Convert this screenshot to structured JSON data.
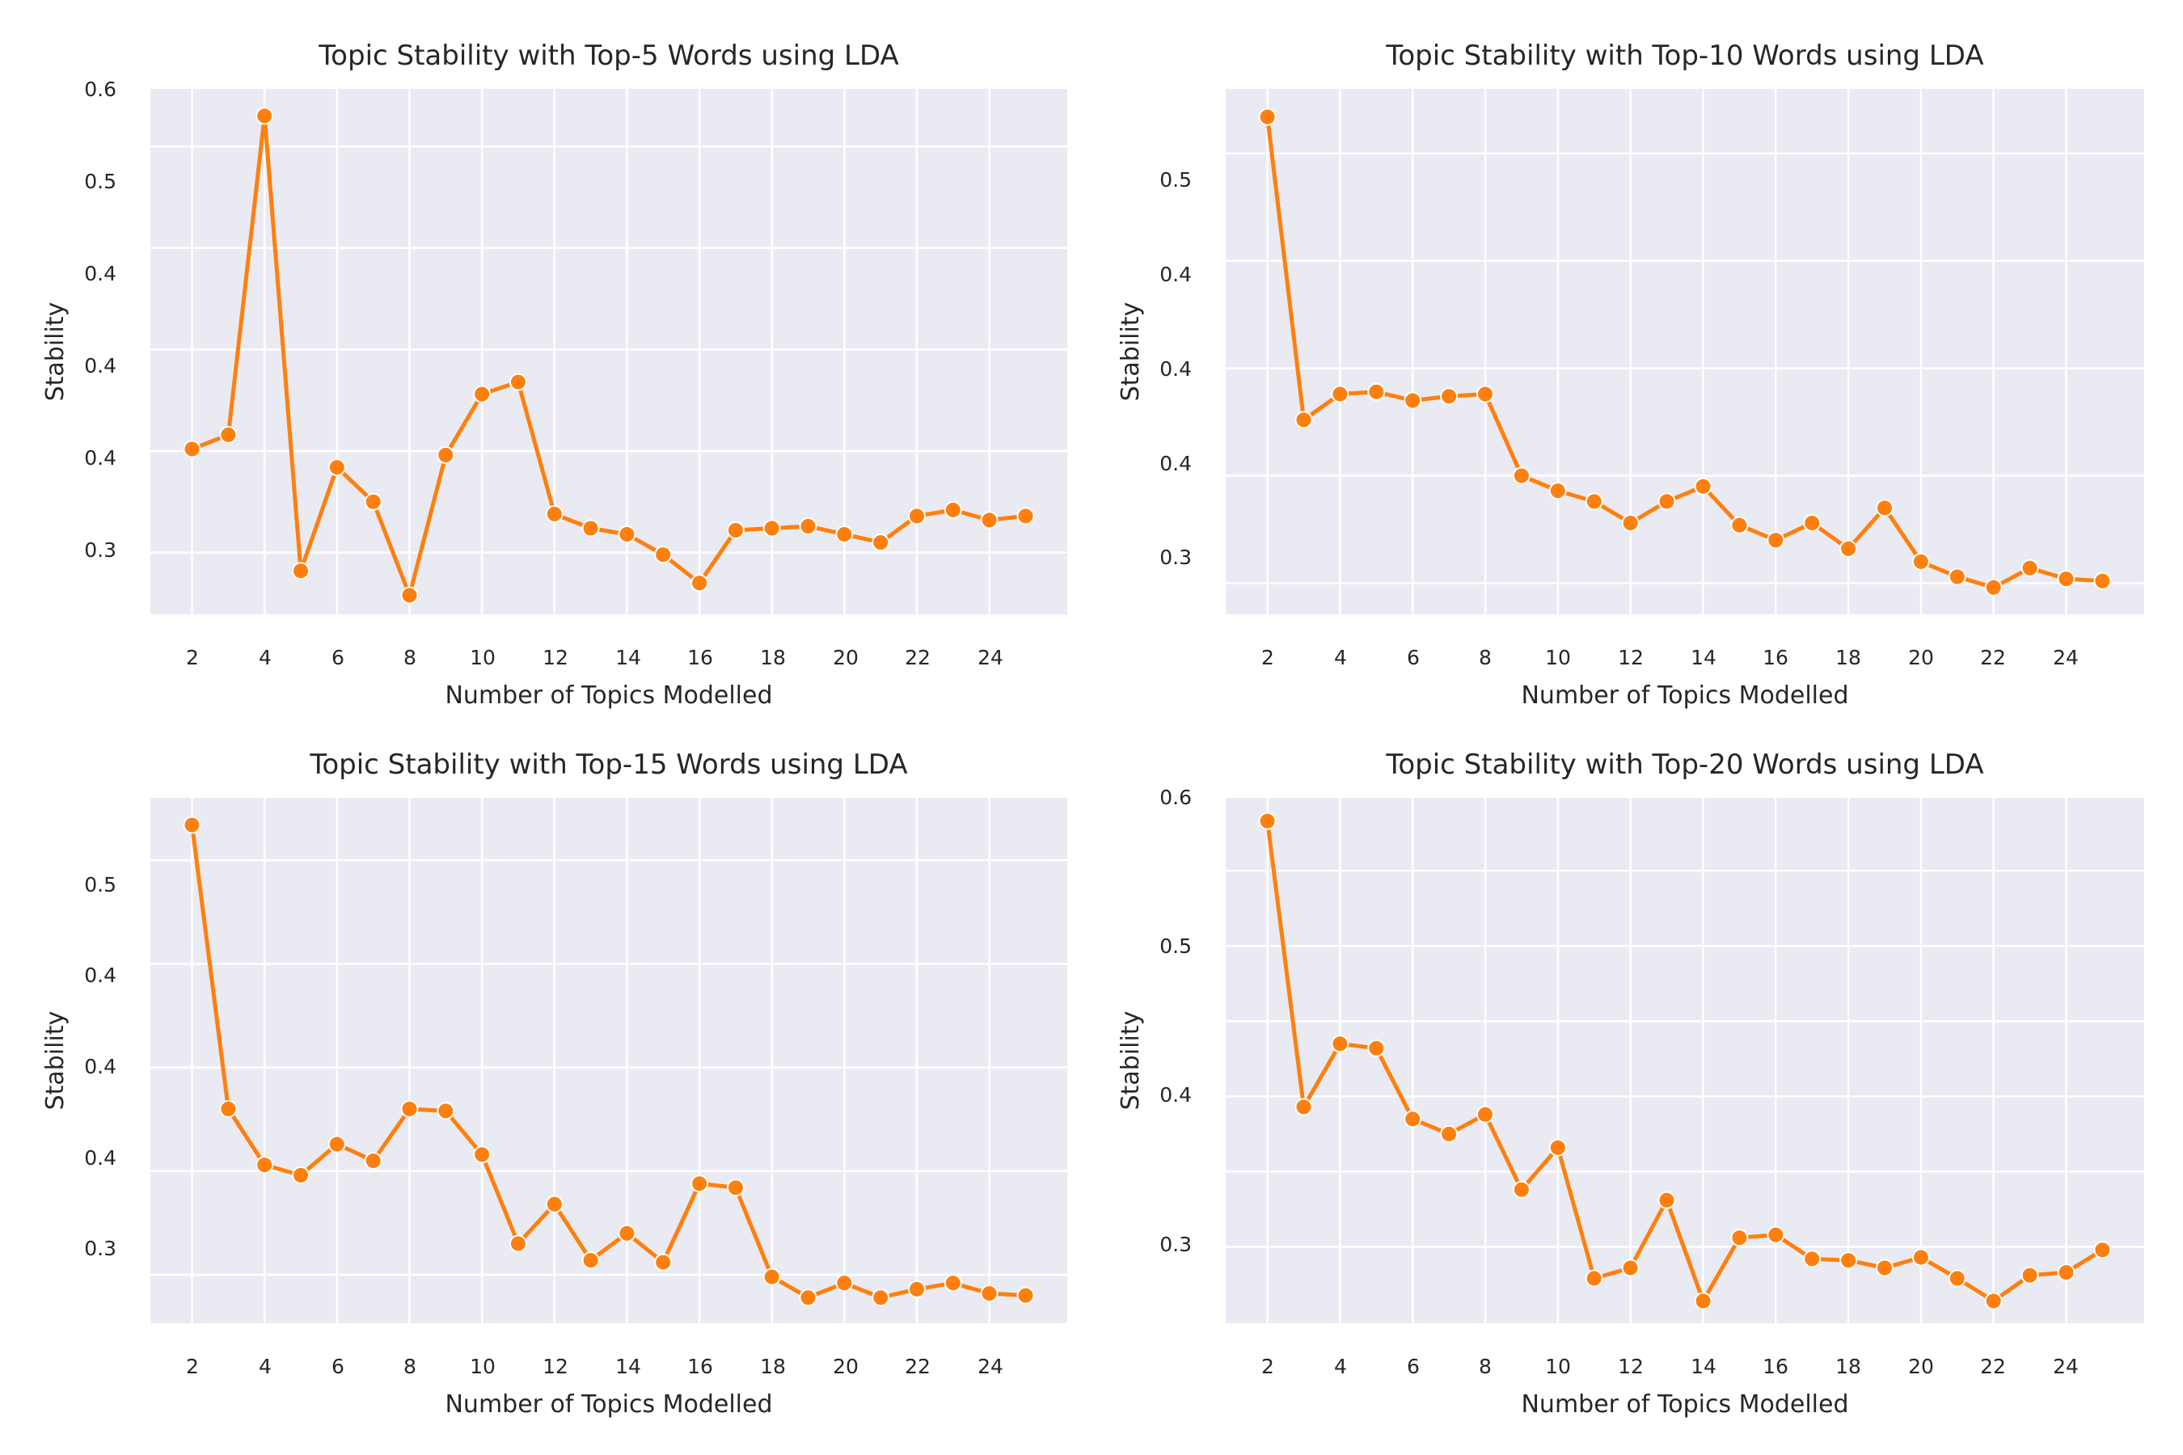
{
  "chart_data": [
    {
      "type": "line",
      "title": "Topic Stability with Top-5 Words using LDA",
      "xlabel": "Number of Topics Modelled",
      "ylabel": "Stability",
      "x": [
        2,
        3,
        4,
        5,
        6,
        7,
        8,
        9,
        10,
        11,
        12,
        13,
        14,
        15,
        16,
        17,
        18,
        19,
        20,
        21,
        22,
        23,
        24,
        25
      ],
      "y_tick_labels": [
        "0.3",
        "0.4",
        "0.4",
        "0.4",
        "0.5",
        "0.6"
      ],
      "x_tick_labels": [
        "2",
        "4",
        "6",
        "8",
        "10",
        "12",
        "14",
        "16",
        "18",
        "20",
        "22",
        "24"
      ],
      "series": [
        {
          "values": [
            0.401,
            0.408,
            0.565,
            0.341,
            0.392,
            0.375,
            0.329,
            0.398,
            0.428,
            0.434,
            0.369,
            0.362,
            0.359,
            0.349,
            0.335,
            0.361,
            0.362,
            0.363,
            0.359,
            0.355,
            0.368,
            0.371,
            0.366,
            0.368
          ]
        }
      ],
      "color": "#ff7f0e",
      "grid": true,
      "background": "#eaeaf2"
    },
    {
      "type": "line",
      "title": "Topic Stability with Top-10 Words using LDA",
      "xlabel": "Number of Topics Modelled",
      "ylabel": "Stability",
      "x": [
        2,
        3,
        4,
        5,
        6,
        7,
        8,
        9,
        10,
        11,
        12,
        13,
        14,
        15,
        16,
        17,
        18,
        19,
        20,
        21,
        22,
        23,
        24,
        25
      ],
      "y_tick_labels": [
        "0.3",
        "0.4",
        "0.4",
        "0.4",
        "0.5"
      ],
      "x_tick_labels": [
        "2",
        "4",
        "6",
        "8",
        "10",
        "12",
        "14",
        "16",
        "18",
        "20",
        "22",
        "24"
      ],
      "series": [
        {
          "values": [
            0.567,
            0.426,
            0.438,
            0.439,
            0.435,
            0.437,
            0.438,
            0.4,
            0.393,
            0.388,
            0.378,
            0.388,
            0.395,
            0.377,
            0.37,
            0.378,
            0.366,
            0.385,
            0.36,
            0.353,
            0.348,
            0.357,
            0.352,
            0.351
          ]
        }
      ],
      "color": "#ff7f0e",
      "grid": true,
      "background": "#eaeaf2"
    },
    {
      "type": "line",
      "title": "Topic Stability with Top-15 Words using LDA",
      "xlabel": "Number of Topics Modelled",
      "ylabel": "Stability",
      "x": [
        2,
        3,
        4,
        5,
        6,
        7,
        8,
        9,
        10,
        11,
        12,
        13,
        14,
        15,
        16,
        17,
        18,
        19,
        20,
        21,
        22,
        23,
        24,
        25
      ],
      "y_tick_labels": [
        "0.3",
        "0.4",
        "0.4",
        "0.4",
        "0.5"
      ],
      "x_tick_labels": [
        "2",
        "4",
        "6",
        "8",
        "10",
        "12",
        "14",
        "16",
        "18",
        "20",
        "22",
        "24"
      ],
      "series": [
        {
          "values": [
            0.567,
            0.43,
            0.403,
            0.398,
            0.413,
            0.405,
            0.43,
            0.429,
            0.408,
            0.365,
            0.384,
            0.357,
            0.37,
            0.356,
            0.394,
            0.392,
            0.349,
            0.339,
            0.346,
            0.339,
            0.343,
            0.346,
            0.341,
            0.34
          ]
        }
      ],
      "color": "#ff7f0e",
      "grid": true,
      "background": "#eaeaf2"
    },
    {
      "type": "line",
      "title": "Topic Stability with Top-20 Words using LDA",
      "xlabel": "Number of Topics Modelled",
      "ylabel": "Stability",
      "x": [
        2,
        3,
        4,
        5,
        6,
        7,
        8,
        9,
        10,
        11,
        12,
        13,
        14,
        15,
        16,
        17,
        18,
        19,
        20,
        21,
        22,
        23,
        24,
        25
      ],
      "y_tick_labels": [
        "0.3",
        "0.4",
        "0.5",
        "0.6"
      ],
      "x_tick_labels": [
        "2",
        "4",
        "6",
        "8",
        "10",
        "12",
        "14",
        "16",
        "18",
        "20",
        "22",
        "24"
      ],
      "series": [
        {
          "values": [
            0.583,
            0.393,
            0.435,
            0.432,
            0.385,
            0.375,
            0.388,
            0.338,
            0.366,
            0.279,
            0.286,
            0.331,
            0.264,
            0.306,
            0.308,
            0.292,
            0.291,
            0.286,
            0.293,
            0.279,
            0.264,
            0.281,
            0.283,
            0.298
          ]
        }
      ],
      "color": "#ff7f0e",
      "grid": true,
      "background": "#eaeaf2"
    }
  ]
}
